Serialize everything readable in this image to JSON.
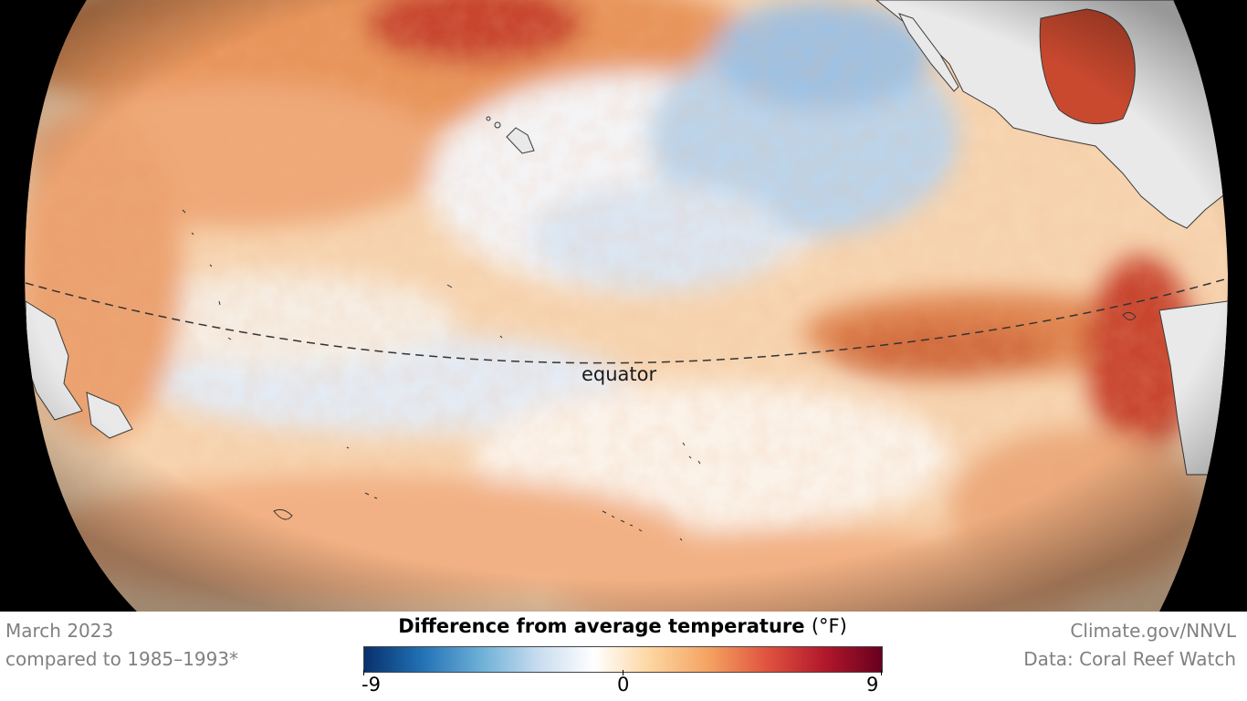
{
  "map": {
    "equator_label": "equator"
  },
  "footer": {
    "date": "March 2023",
    "baseline": "compared to 1985–1993*",
    "source": "Climate.gov/NNVL",
    "data_credit": "Data: Coral Reef Watch"
  },
  "legend": {
    "title": "Difference from average temperature",
    "unit": "(°F)",
    "min_label": "-9",
    "mid_label": "0",
    "max_label": "9",
    "colors": [
      "#08306b",
      "#2171b5",
      "#6baed6",
      "#c6dbef",
      "#ffffff",
      "#fdd49e",
      "#f4a261",
      "#e0533f",
      "#b2182b",
      "#67001f"
    ]
  }
}
